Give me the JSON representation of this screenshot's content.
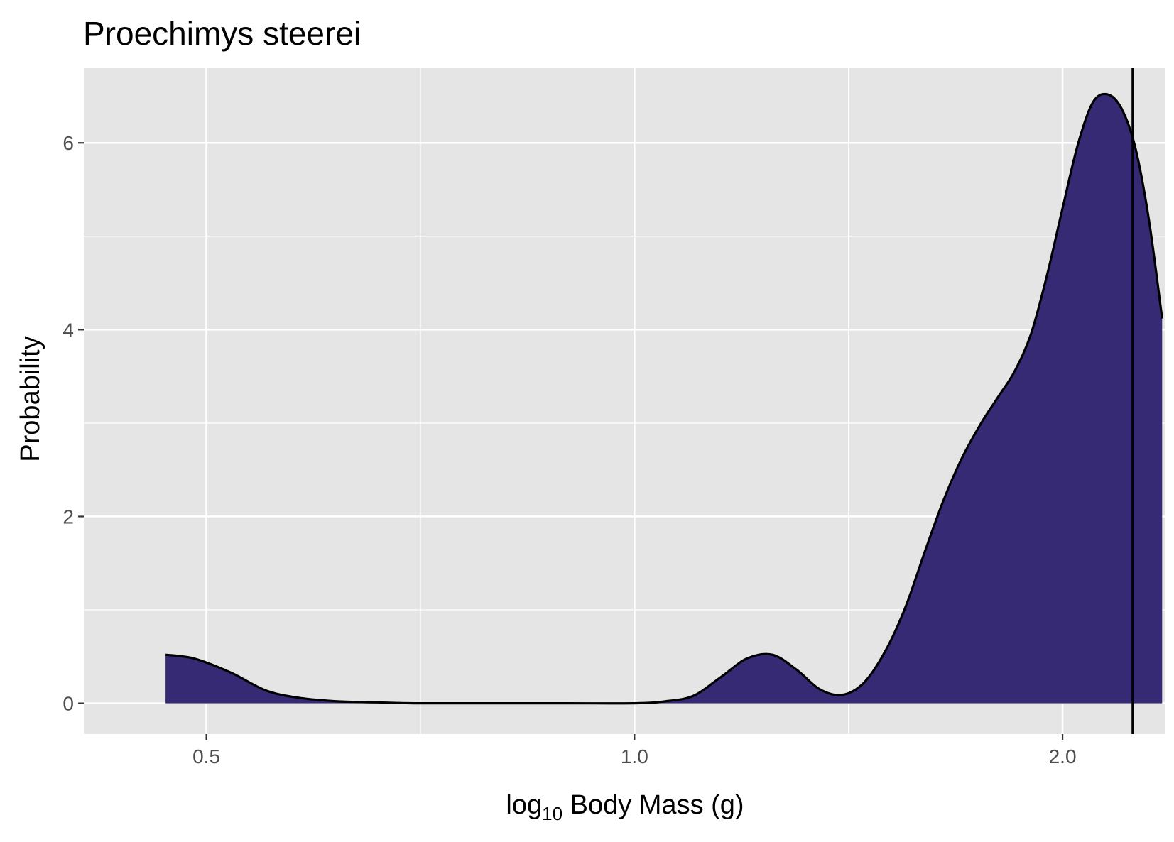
{
  "chart_data": {
    "type": "area",
    "title": "Proechimys steerei",
    "xlabel": {
      "prefix": "log",
      "subscript": "10",
      "suffix": " Body Mass (g)"
    },
    "ylabel": "Probability",
    "x_tick_labels": [
      "0.5",
      "1.0",
      "2.0"
    ],
    "y_tick_labels": [
      "0",
      "2",
      "4",
      "6"
    ],
    "x_ticks_log": [
      0.5,
      1.0,
      2.0
    ],
    "y_ticks": [
      0,
      2,
      4,
      6
    ],
    "x_scale": "log10",
    "xlim": [
      0.41,
      2.36
    ],
    "ylim": [
      -0.33,
      6.8
    ],
    "grid": true,
    "legend": "none",
    "fill_color": "#372A75",
    "panel_background": "#E5E5E5",
    "density_curve": {
      "x": [
        0.468,
        0.49,
        0.52,
        0.55,
        0.58,
        0.62,
        0.66,
        0.7,
        0.8,
        0.9,
        1.0,
        1.05,
        1.1,
        1.15,
        1.2,
        1.25,
        1.3,
        1.35,
        1.4,
        1.45,
        1.5,
        1.55,
        1.6,
        1.65,
        1.7,
        1.75,
        1.8,
        1.85,
        1.9,
        1.95,
        2.0,
        2.05,
        2.1,
        2.15,
        2.2,
        2.25,
        2.3,
        2.35
      ],
      "y": [
        0.52,
        0.48,
        0.33,
        0.14,
        0.06,
        0.02,
        0.01,
        0.0,
        0.0,
        0.0,
        0.0,
        0.02,
        0.08,
        0.28,
        0.48,
        0.52,
        0.36,
        0.15,
        0.09,
        0.22,
        0.55,
        1.02,
        1.62,
        2.18,
        2.63,
        2.98,
        3.27,
        3.55,
        3.95,
        4.58,
        5.3,
        5.98,
        6.43,
        6.52,
        6.37,
        5.95,
        5.18,
        4.12
      ]
    },
    "vertical_line_x": 2.24
  }
}
